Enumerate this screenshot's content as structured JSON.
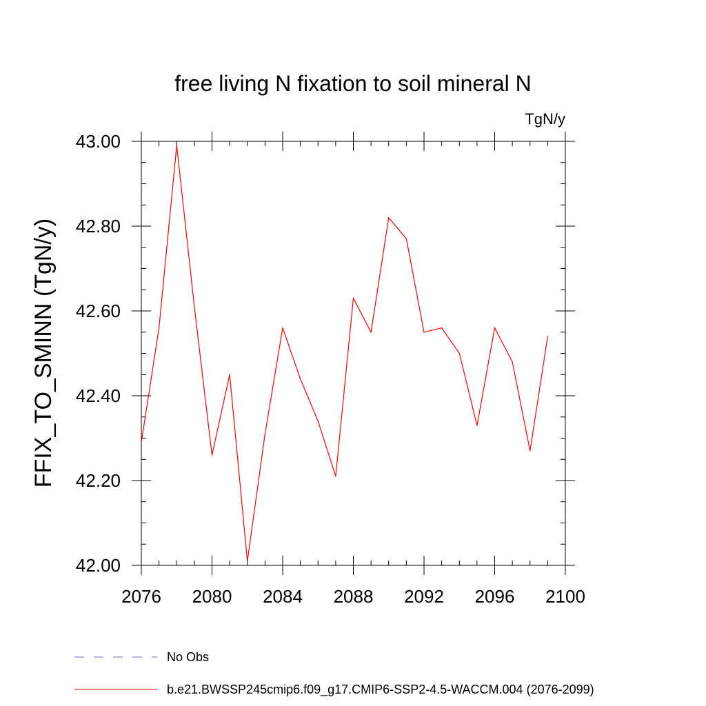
{
  "chart_data": {
    "type": "line",
    "title": "free living N fixation to soil mineral N",
    "units_label": "TgN/y",
    "ylabel": "FFIX_TO_SMINN  (TgN/y)",
    "xlabel": "",
    "xlim": [
      2076,
      2100
    ],
    "ylim": [
      42.0,
      43.0
    ],
    "xticks": [
      "2076",
      "2080",
      "2084",
      "2088",
      "2092",
      "2096",
      "2100"
    ],
    "yticks": [
      "42.00",
      "42.20",
      "42.40",
      "42.60",
      "42.80",
      "43.00"
    ],
    "series": [
      {
        "name": "b.e21.BWSSP245cmip6.f09_g17.CMIP6-SSP2-4.5-WACCM.004 (2076-2099)",
        "color": "#ff0000",
        "x": [
          2076,
          2077,
          2078,
          2079,
          2080,
          2081,
          2082,
          2083,
          2084,
          2085,
          2086,
          2087,
          2088,
          2089,
          2090,
          2091,
          2092,
          2093,
          2094,
          2095,
          2096,
          2097,
          2098,
          2099
        ],
        "values": [
          42.29,
          42.56,
          42.99,
          42.61,
          42.26,
          42.45,
          42.01,
          42.31,
          42.56,
          42.44,
          42.34,
          42.21,
          42.63,
          42.55,
          42.82,
          42.77,
          42.55,
          42.56,
          42.5,
          42.33,
          42.56,
          42.48,
          42.27,
          42.54
        ]
      }
    ],
    "legend": [
      {
        "label": "No Obs",
        "color": "#7a6fb0",
        "style": "dashed"
      },
      {
        "label": "b.e21.BWSSP245cmip6.f09_g17.CMIP6-SSP2-4.5-WACCM.004 (2076-2099)",
        "color": "#ff0000",
        "style": "solid"
      }
    ]
  }
}
